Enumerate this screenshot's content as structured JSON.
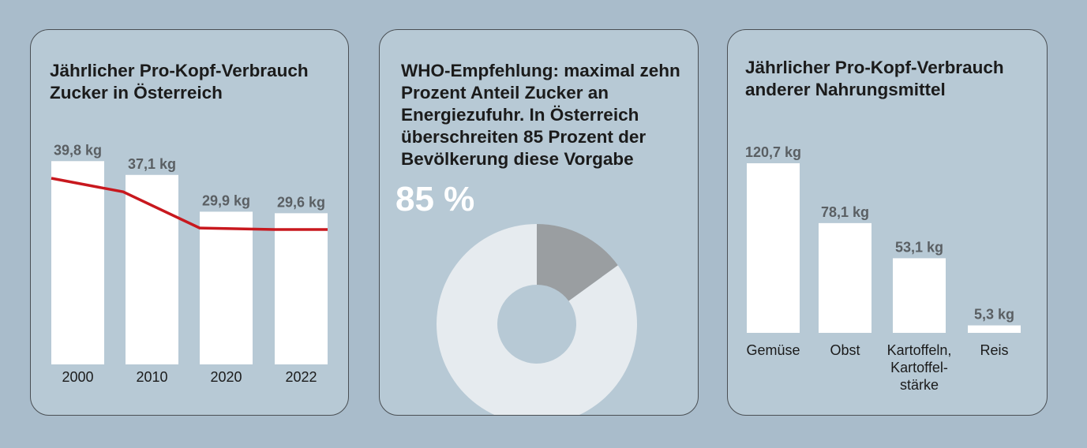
{
  "panels": {
    "sugar": {
      "title": "Jährlicher Pro-Kopf-Verbrauch Zucker in Österreich"
    },
    "who": {
      "title": "WHO-Empfehlung: maximal zehn Prozent Anteil Zucker an Energiezufuhr. In Österreich überschreiten 85 Prozent der Bevölkerung diese Vorgabe"
    },
    "food": {
      "title": "Jährlicher Pro-Kopf-Verbrauch anderer Nahrungsmittel"
    }
  },
  "colors": {
    "background": "#a9bccb",
    "panel": "#b7c9d5",
    "bar": "#ffffff",
    "trend_line": "#c8181e",
    "label": "#5a5f63",
    "donut_main": "#e6ebef",
    "donut_rest": "#9a9ea1"
  },
  "chart_data": [
    {
      "type": "bar",
      "title": "Jährlicher Pro-Kopf-Verbrauch Zucker in Österreich",
      "categories": [
        "2000",
        "2010",
        "2020",
        "2022"
      ],
      "values": [
        39.8,
        37.1,
        29.9,
        29.6
      ],
      "value_labels": [
        "39,8 kg",
        "37,1 kg",
        "29,9 kg",
        "29,6 kg"
      ],
      "unit": "kg",
      "ylim": [
        0,
        40
      ],
      "grid": false,
      "overlay_line": {
        "values": [
          39.8,
          37.1,
          29.9,
          29.6
        ],
        "color": "#c8181e"
      }
    },
    {
      "type": "pie",
      "donut": true,
      "values": [
        85,
        15
      ],
      "label": "85 %",
      "colors": [
        "#e6ebef",
        "#9a9ea1"
      ]
    },
    {
      "type": "bar",
      "title": "Jährlicher Pro-Kopf-Verbrauch anderer Nahrungsmittel",
      "categories": [
        [
          "Gemüse"
        ],
        [
          "Obst"
        ],
        [
          "Kartoffeln,",
          "Kartoffel-",
          "stärke"
        ],
        [
          "Reis"
        ]
      ],
      "values": [
        120.7,
        78.1,
        53.1,
        5.3
      ],
      "value_labels": [
        "120,7 kg",
        "78,1 kg",
        "53,1 kg",
        "5,3 kg"
      ],
      "unit": "kg",
      "ylim": [
        0,
        120.7
      ],
      "grid": false
    }
  ]
}
